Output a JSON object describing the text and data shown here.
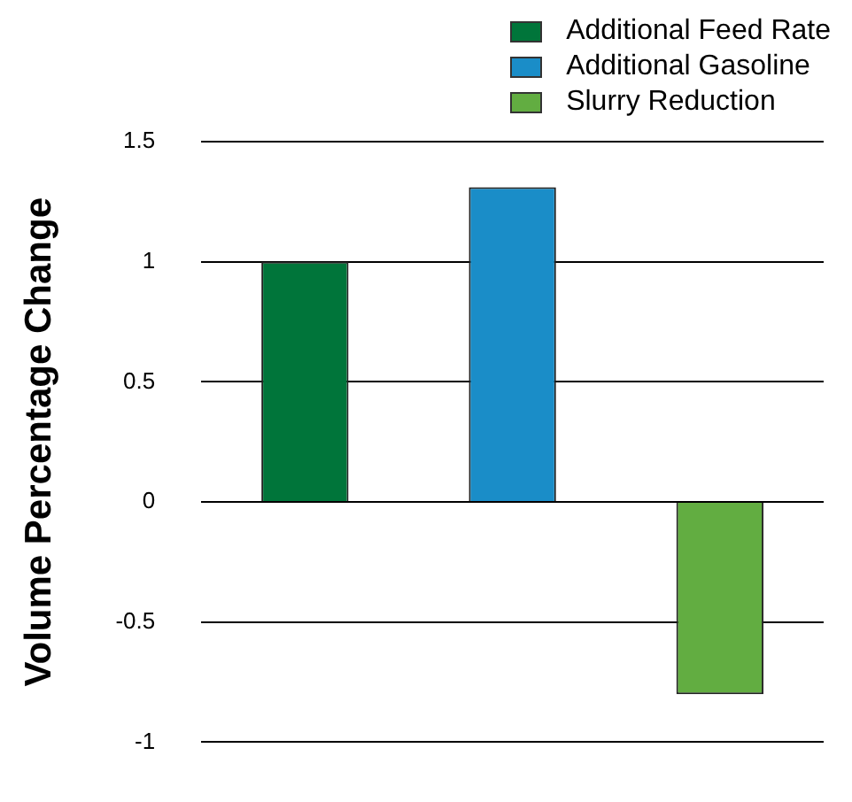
{
  "chart_data": {
    "type": "bar",
    "ylabel": "Volume Percentage Change",
    "categories": [
      null,
      null,
      null
    ],
    "series": [
      {
        "name": "Additional Feed Rate",
        "color": "#00753a",
        "values": [
          1,
          null,
          null
        ]
      },
      {
        "name": "Additional Gasoline",
        "color": "#1a8dc8",
        "values": [
          null,
          1.31,
          null
        ]
      },
      {
        "name": "Slurry Reduction",
        "color": "#62ad41",
        "values": [
          null,
          null,
          -0.8
        ]
      }
    ],
    "ylim": [
      -1,
      1.5
    ],
    "yticks": [
      -1,
      -0.5,
      0,
      0.5,
      1,
      1.5
    ],
    "grid": "y",
    "legend": "top right"
  }
}
